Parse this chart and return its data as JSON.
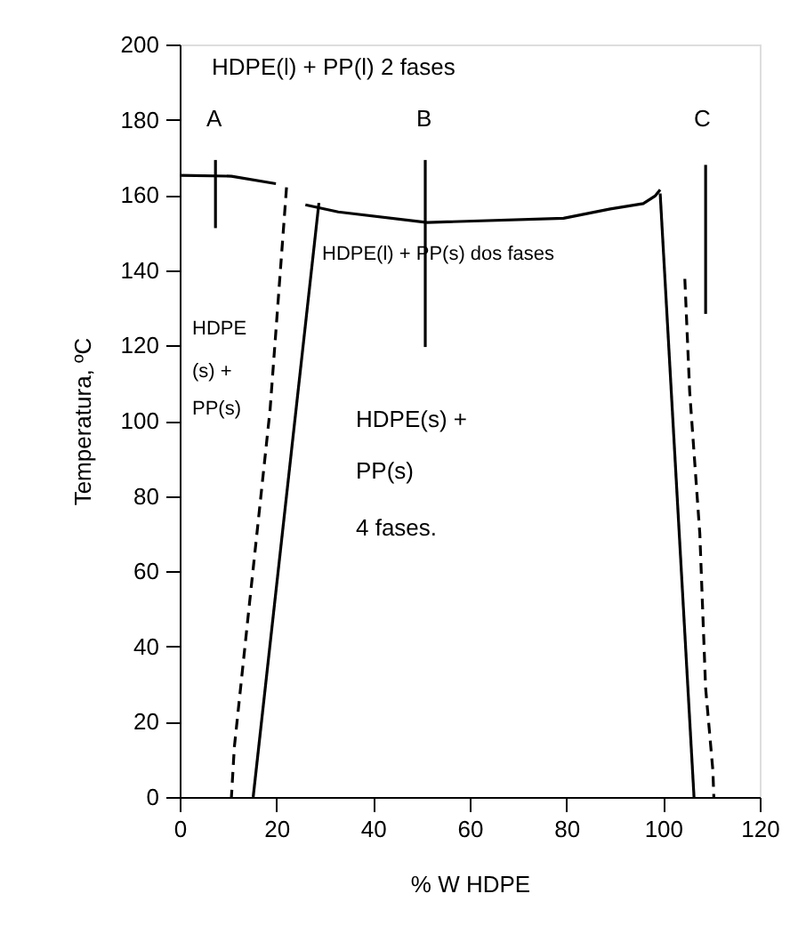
{
  "chart_data": {
    "type": "line",
    "xlabel": "% W HDPE",
    "ylabel": "Temperatura, ºC",
    "xlim": [
      0,
      120
    ],
    "xticks": [
      0,
      20,
      40,
      60,
      80,
      100,
      120
    ],
    "ylim": [
      0,
      200
    ],
    "yticks": [
      0,
      20,
      40,
      60,
      80,
      100,
      120,
      140,
      160,
      180,
      200
    ],
    "grid": false,
    "marker": "none",
    "series": [
      {
        "color": "#000000",
        "line_style": "solid",
        "x": [
          0,
          10.7,
          19.9,
          22.1,
          26,
          32.8,
          51.2,
          79.4,
          89.1,
          95.9,
          98.4,
          99.4
        ],
        "values": [
          165.2,
          165,
          163,
          null,
          157.4,
          155.5,
          152.7,
          153.8,
          156.3,
          157.7,
          159.8,
          161.4
        ]
      },
      {
        "color": "#000000",
        "line_style": "solid",
        "x": [
          28.8,
          15.2
        ],
        "values": [
          157.9,
          0
        ]
      },
      {
        "color": "#000000",
        "line_style": "solid",
        "x": [
          99.4,
          106.4
        ],
        "values": [
          160.4,
          0
        ]
      },
      {
        "color": "#000000",
        "line_style": "dashed",
        "x": [
          22.1,
          18.7,
          14.4,
          11.3,
          10.7
        ],
        "values": [
          162,
          103,
          51,
          13.2,
          0
        ]
      },
      {
        "color": "#000000",
        "line_style": "dashed",
        "x": [
          104.5,
          105.5,
          107.6,
          108.8,
          110.3,
          110.5
        ],
        "values": [
          137.7,
          107.8,
          70,
          29,
          7.1,
          0
        ]
      },
      {
        "color": "#000000",
        "line_style": "solid",
        "x": [
          7.4,
          7.4
        ],
        "values": [
          169.3,
          151.2
        ]
      },
      {
        "color": "#000000",
        "line_style": "solid",
        "x": [
          50.8,
          50.8
        ],
        "values": [
          169.3,
          119.6
        ]
      },
      {
        "color": "#000000",
        "line_style": "solid",
        "x": [
          108.8,
          108.8
        ],
        "values": [
          168,
          128.4
        ]
      }
    ],
    "annotations": [
      "HDPE(l) + PP(l)    2 fases",
      "A",
      "B",
      "C",
      "HDPE(l) + PP(s)  dos fases",
      "HDPE",
      "(s)  +",
      "PP(s)",
      "HDPE(s) +",
      "PP(s)",
      "4 fases."
    ]
  }
}
